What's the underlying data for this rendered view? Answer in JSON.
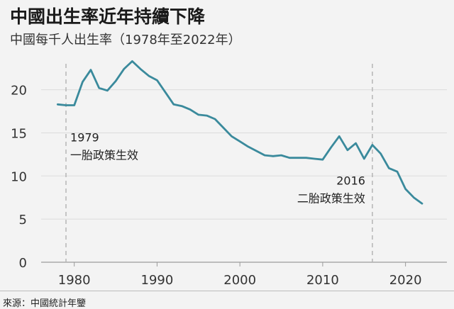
{
  "title": "中國出生率近年持續下降",
  "subtitle": "中國每千人出生率（1978年至2022年）",
  "source": "來源：中國統計年鑒",
  "chart_data": {
    "type": "line",
    "title": "中國出生率近年持續下降",
    "subtitle": "中國每千人出生率（1978年至2022年）",
    "xlabel": "",
    "ylabel": "",
    "xlim": [
      1976,
      2025
    ],
    "ylim": [
      0,
      23.5
    ],
    "x_ticks": [
      1980,
      1990,
      2000,
      2010,
      2020
    ],
    "y_ticks": [
      0,
      5,
      10,
      15,
      20
    ],
    "grid": "horizontal",
    "line_color": "#3a8a9c",
    "series": [
      {
        "x": [
          1978,
          1979,
          1980,
          1981,
          1982,
          1983,
          1984,
          1985,
          1986,
          1987,
          1988,
          1989,
          1990,
          1991,
          1992,
          1993,
          1994,
          1995,
          1996,
          1997,
          1998,
          1999,
          2000,
          2001,
          2002,
          2003,
          2004,
          2005,
          2006,
          2007,
          2008,
          2009,
          2010,
          2011,
          2012,
          2013,
          2014,
          2015,
          2016,
          2017,
          2018,
          2019,
          2020,
          2021,
          2022
        ],
        "y": [
          18.3,
          18.2,
          18.2,
          20.9,
          22.3,
          20.2,
          19.9,
          21.0,
          22.4,
          23.3,
          22.4,
          21.6,
          21.1,
          19.7,
          18.3,
          18.1,
          17.7,
          17.1,
          17.0,
          16.6,
          15.6,
          14.6,
          14.0,
          13.4,
          12.9,
          12.4,
          12.3,
          12.4,
          12.1,
          12.1,
          12.1,
          12.0,
          11.9,
          13.3,
          14.6,
          13.0,
          13.8,
          12.0,
          13.6,
          12.6,
          10.9,
          10.5,
          8.5,
          7.5,
          6.8
        ]
      }
    ],
    "annotations": [
      {
        "x": 1979,
        "line1": "1979",
        "line2": "一胎政策生效"
      },
      {
        "x": 2016,
        "line1": "2016",
        "line2": "二胎政策生效"
      }
    ]
  }
}
